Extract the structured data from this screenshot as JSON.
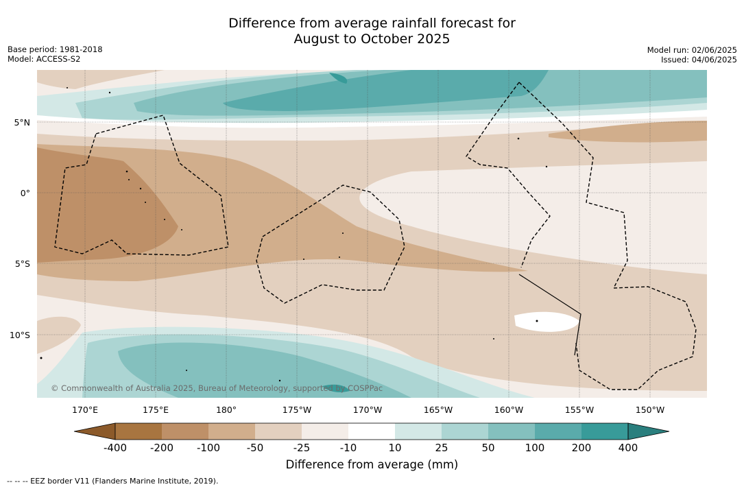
{
  "title_line1": "Difference from average rainfall forecast for",
  "title_line2": "August to October 2025",
  "meta_left": {
    "base_period": "Base period: 1981-2018",
    "model": "Model: ACCESS-S2"
  },
  "meta_right": {
    "model_run": "Model run: 02/06/2025",
    "issued": "Issued: 04/06/2025"
  },
  "lat_labels": [
    "5°N",
    "0°",
    "5°S",
    "10°S"
  ],
  "lon_labels": [
    "170°E",
    "175°E",
    "180°",
    "175°W",
    "170°W",
    "165°W",
    "160°W",
    "155°W",
    "150°W"
  ],
  "copyright": "© Commonwealth of Australia 2025, Bureau of Meteorology, supported by COSPPac",
  "colorbar": {
    "ticks": [
      "-400",
      "-200",
      "-100",
      "-50",
      "-25",
      "-10",
      "10",
      "25",
      "50",
      "100",
      "200",
      "400"
    ],
    "colors": [
      "#8c5a2a",
      "#a87540",
      "#be9068",
      "#d1ae8c",
      "#e3d0bf",
      "#f4ede8",
      "#ffffff",
      "#d3e8e6",
      "#acd5d3",
      "#84c0be",
      "#5aabab",
      "#389b99",
      "#2a7f7e"
    ],
    "label": "Difference from average (mm)"
  },
  "footnote": "--  --  -- EEZ border V11 (Flanders Marine Institute, 2019)."
}
